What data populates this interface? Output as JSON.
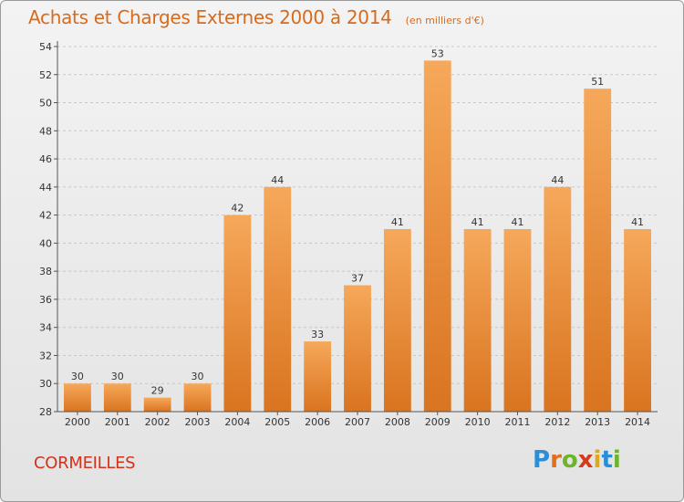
{
  "header": {
    "title": "Achats et Charges Externes 2000 à 2014",
    "unit": "(en milliers d'€)"
  },
  "footer": {
    "city": "CORMEILLES",
    "brand": "Proxiti",
    "brand_letters": [
      {
        "ch": "P",
        "color": "#2a8fd6"
      },
      {
        "ch": "r",
        "color": "#e0701c"
      },
      {
        "ch": "o",
        "color": "#6cb52a"
      },
      {
        "ch": "x",
        "color": "#d63a1a"
      },
      {
        "ch": "i",
        "color": "#e0a81c"
      },
      {
        "ch": "t",
        "color": "#2a8fd6"
      },
      {
        "ch": "i",
        "color": "#6cb52a"
      }
    ]
  },
  "colors": {
    "bar_top": "#f6a85a",
    "bar_bottom": "#d97420",
    "grid": "#c8c8c8",
    "axis": "#555555",
    "text": "#333333"
  },
  "chart_data": {
    "type": "bar",
    "categories": [
      "2000",
      "2001",
      "2002",
      "2003",
      "2004",
      "2005",
      "2006",
      "2007",
      "2008",
      "2009",
      "2010",
      "2011",
      "2012",
      "2013",
      "2014"
    ],
    "values": [
      30,
      30,
      29,
      30,
      42,
      44,
      33,
      37,
      41,
      53,
      41,
      41,
      44,
      51,
      41
    ],
    "ylim": [
      28,
      54
    ],
    "yticks": [
      28,
      30,
      32,
      34,
      36,
      38,
      40,
      42,
      44,
      46,
      48,
      50,
      52,
      54
    ],
    "grid": true,
    "data_labels": true
  }
}
